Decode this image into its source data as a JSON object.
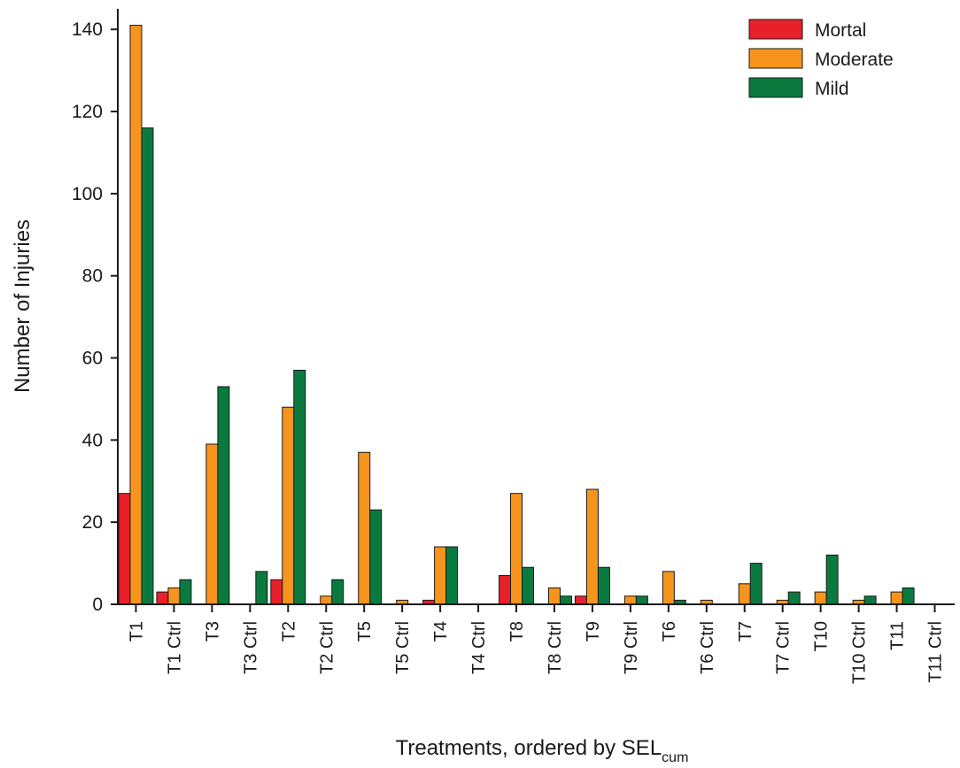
{
  "chart_data": {
    "type": "bar",
    "ylabel": "Number of Injuries",
    "xlabel": "Treatments, ordered by SEL",
    "xlabel_subscript": "cum",
    "ylim": [
      0,
      145
    ],
    "yticks": [
      0,
      20,
      40,
      60,
      80,
      100,
      120,
      140
    ],
    "grid": false,
    "legend_position": "top-right",
    "categories": [
      "T1",
      "T1 Ctrl",
      "T3",
      "T3 Ctrl",
      "T2",
      "T2 Ctrl",
      "T5",
      "T5 Ctrl",
      "T4",
      "T4 Ctrl",
      "T8",
      "T8 Ctrl",
      "T9",
      "T9 Ctrl",
      "T6",
      "T6 Ctrl",
      "T7",
      "T7 Ctrl",
      "T10",
      "T10 Ctrl",
      "T11",
      "T11 Ctrl"
    ],
    "series": [
      {
        "name": "Mortal",
        "color": "#e8202a",
        "values": [
          27,
          3,
          0,
          0,
          6,
          0,
          0,
          0,
          1,
          0,
          7,
          0,
          2,
          0,
          0,
          0,
          0,
          0,
          0,
          0,
          0,
          0
        ]
      },
      {
        "name": "Moderate",
        "color": "#f7941d",
        "values": [
          141,
          4,
          39,
          0,
          48,
          2,
          37,
          1,
          14,
          0,
          27,
          4,
          28,
          2,
          8,
          1,
          5,
          1,
          3,
          1,
          3,
          0
        ]
      },
      {
        "name": "Mild",
        "color": "#0b7a3e",
        "values": [
          116,
          6,
          53,
          8,
          57,
          6,
          23,
          0,
          14,
          0,
          9,
          2,
          9,
          2,
          1,
          0,
          10,
          3,
          12,
          2,
          4,
          0
        ]
      }
    ]
  }
}
